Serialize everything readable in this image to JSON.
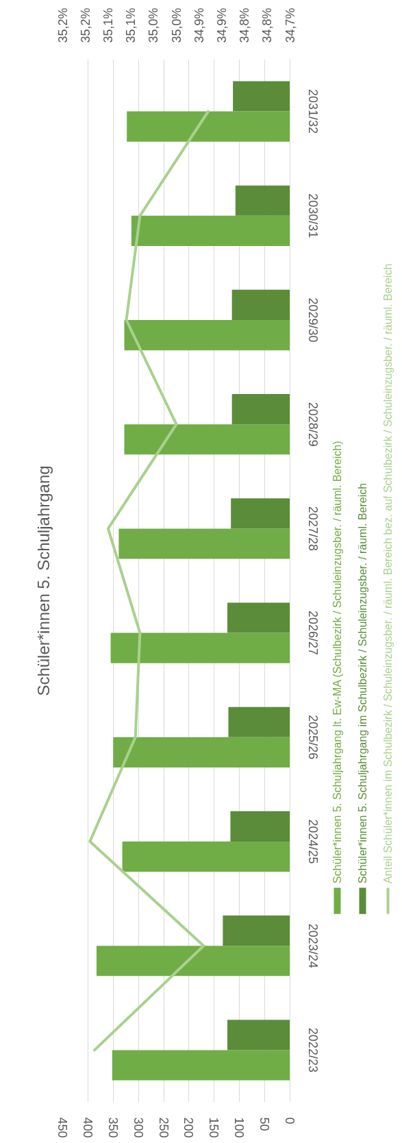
{
  "chart_data": {
    "type": "bar",
    "orientation": "horizontal",
    "title": "Schüler*innen 5. Schuljahrgang",
    "categories": [
      "2031/32",
      "2030/31",
      "2029/30",
      "2028/29",
      "2027/28",
      "2026/27",
      "2025/26",
      "2024/25",
      "2023/24",
      "2022/23"
    ],
    "series": [
      {
        "name": "Schüler*innen 5. Schuljahrgang lt. Ew-MA (Schulbezirk / Schuleinzugsber. / räuml. Bereich)",
        "color": "#70ad47",
        "values": [
          323,
          314,
          328,
          328,
          339,
          355,
          350,
          332,
          383,
          352
        ]
      },
      {
        "name": "Schüler*innen 5. Schuljahrgang im Schulbezirk / Schuleinzugsber. / räuml. Bereich",
        "color": "#5b8c3a",
        "values": [
          113,
          108,
          115,
          115,
          117,
          124,
          122,
          118,
          133,
          124
        ]
      },
      {
        "name": "Anteil Schüler*innen im Schulbezirk / Schuleinzugsber. / räuml. Bereich bez. auf Schulbezirk / Schuleinzugsber. / räuml. Bereich",
        "type": "line",
        "axis": "x2",
        "color": "#a9d18e",
        "values": [
          34.88,
          35.03,
          35.06,
          34.95,
          35.1,
          35.03,
          35.04,
          35.14,
          34.89,
          35.13
        ]
      }
    ],
    "xlim": [
      450,
      0
    ],
    "xticks": [
      0,
      50,
      100,
      150,
      200,
      250,
      300,
      350,
      400,
      450
    ],
    "x2lim": [
      35.2,
      34.7
    ],
    "x2ticks": [
      {
        "value": 34.7,
        "label": "34,7%"
      },
      {
        "value": 34.75,
        "label": "34,8%"
      },
      {
        "value": 34.8,
        "label": "34,8%"
      },
      {
        "value": 34.85,
        "label": "34,9%"
      },
      {
        "value": 34.9,
        "label": "34,9%"
      },
      {
        "value": 34.95,
        "label": "35,0%"
      },
      {
        "value": 35.0,
        "label": "35,0%"
      },
      {
        "value": 35.05,
        "label": "35,1%"
      },
      {
        "value": 35.1,
        "label": "35,1%"
      },
      {
        "value": 35.15,
        "label": "35,2%"
      },
      {
        "value": 35.2,
        "label": "35,2%"
      }
    ],
    "grid": "x",
    "legend": "right"
  }
}
